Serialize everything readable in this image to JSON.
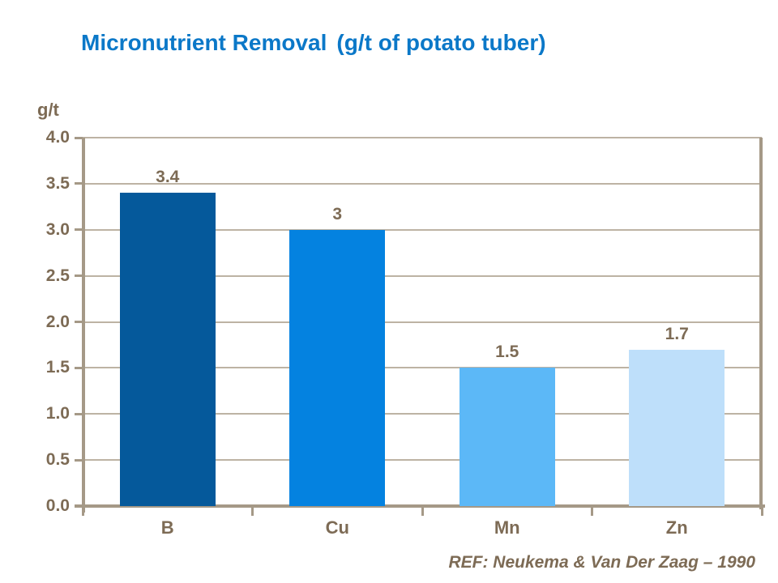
{
  "title": {
    "main": "Micronutrient Removal",
    "paren": "(g/t of potato tuber)"
  },
  "axis_unit_label": "g/t",
  "reference": "REF: Neukema & Van Der Zaag – 1990",
  "colors": {
    "title_blue": "#0B78C8",
    "label_brown": "#7D6B55",
    "axis_line": "#A59987",
    "gridline": "#BDB3A4",
    "background": "#FFFFFF"
  },
  "chart_data": {
    "type": "bar",
    "title": "Micronutrient Removal (g/t of potato tuber)",
    "categories": [
      "B",
      "Cu",
      "Mn",
      "Zn"
    ],
    "values": [
      3.4,
      3,
      1.5,
      1.7
    ],
    "value_labels": [
      "3.4",
      "3",
      "1.5",
      "1.7"
    ],
    "bar_colors": [
      "#05599B",
      "#0482E0",
      "#5CB8F7",
      "#BEDFFA"
    ],
    "xlabel": "",
    "ylabel": "g/t",
    "ylim": [
      0,
      4
    ],
    "ytick_step": 0.5,
    "ytick_labels": [
      "0.0",
      "0.5",
      "1.0",
      "1.5",
      "2.0",
      "2.5",
      "3.0",
      "3.5",
      "4.0"
    ],
    "grid": true,
    "legend_position": "none"
  }
}
